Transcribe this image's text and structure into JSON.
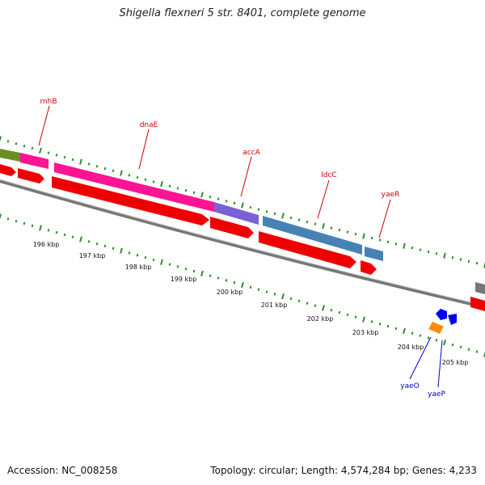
{
  "title": "Shigella flexneri 5 str. 8401, complete genome",
  "footer": {
    "accession": "Accession: NC_008258",
    "summary": "Topology: circular; Length: 4,574,284 bp; Genes: 4,233"
  },
  "colors": {
    "label_top": "#cc0000",
    "label_bottom": "#0000cc",
    "tick": "#2e8b2e",
    "backbone": "#888888",
    "cds_red": "#ee0000",
    "magenta": "#ff1493",
    "purple": "#7b61d6",
    "steelblue": "#4682b4",
    "olive": "#6b8e23",
    "gray": "#888888",
    "blue": "#0000ee",
    "orange": "#ff8c00"
  },
  "kbp_ticks": [
    "196 kbp",
    "197 kbp",
    "198 kbp",
    "199 kbp",
    "200 kbp",
    "201 kbp",
    "202 kbp",
    "203 kbp",
    "204 kbp",
    "205 kbp"
  ],
  "gene_labels_top": [
    "rnhB",
    "dnaE",
    "accA",
    "ldcC",
    "yaeR"
  ],
  "gene_labels_bottom": [
    "yaeO",
    "yaeP"
  ]
}
